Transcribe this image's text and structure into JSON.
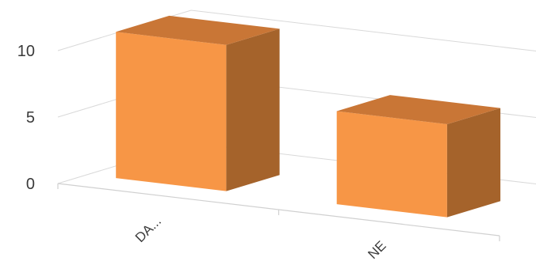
{
  "chart_data": {
    "type": "bar",
    "style": "3d-column",
    "categories": [
      "DA...",
      "NE"
    ],
    "series": [
      {
        "values": [
          11,
          7
        ]
      }
    ],
    "ylim": [
      0,
      10
    ],
    "yticks": [
      "0",
      "5",
      "10"
    ],
    "grid": true,
    "legend": "none",
    "colors": {
      "front": "#F79646",
      "top": "#C97636",
      "side": "#A5632B",
      "grid": "#D9D9D9",
      "text": "#3A3A3A"
    }
  }
}
